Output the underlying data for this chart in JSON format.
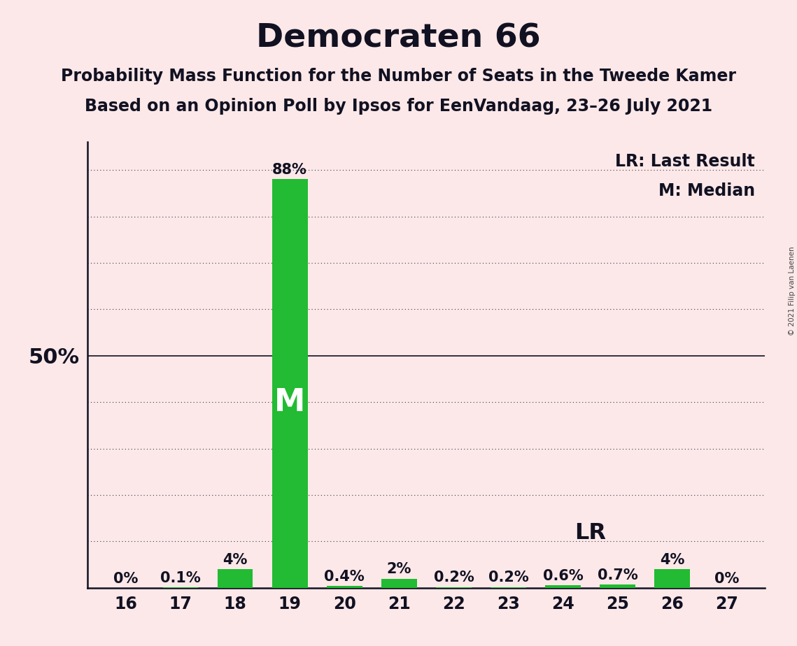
{
  "title": "Democraten 66",
  "subtitle1": "Probability Mass Function for the Number of Seats in the Tweede Kamer",
  "subtitle2": "Based on an Opinion Poll by Ipsos for EenVandaag, 23–26 July 2021",
  "copyright": "© 2021 Filip van Laenen",
  "seats": [
    16,
    17,
    18,
    19,
    20,
    21,
    22,
    23,
    24,
    25,
    26,
    27
  ],
  "values": [
    0.0,
    0.1,
    4.0,
    88.0,
    0.4,
    2.0,
    0.2,
    0.2,
    0.6,
    0.7,
    4.0,
    0.0
  ],
  "labels": [
    "0%",
    "0.1%",
    "4%",
    "88%",
    "0.4%",
    "2%",
    "0.2%",
    "0.2%",
    "0.6%",
    "0.7%",
    "4%",
    "0%"
  ],
  "bar_color": "#22bb33",
  "median_seat": 19,
  "lr_seat": 24,
  "background_color": "#fce8e8",
  "ylabel_50": "50%",
  "legend_lr": "LR: Last Result",
  "legend_m": "M: Median",
  "ylim": [
    0,
    96
  ],
  "ytick_50": 50,
  "grid_ticks": [
    10,
    20,
    30,
    40,
    50,
    60,
    70,
    80,
    90
  ],
  "title_fontsize": 34,
  "subtitle_fontsize": 17,
  "label_fontsize": 15,
  "tick_fontsize": 17,
  "ytick_fontsize": 22
}
